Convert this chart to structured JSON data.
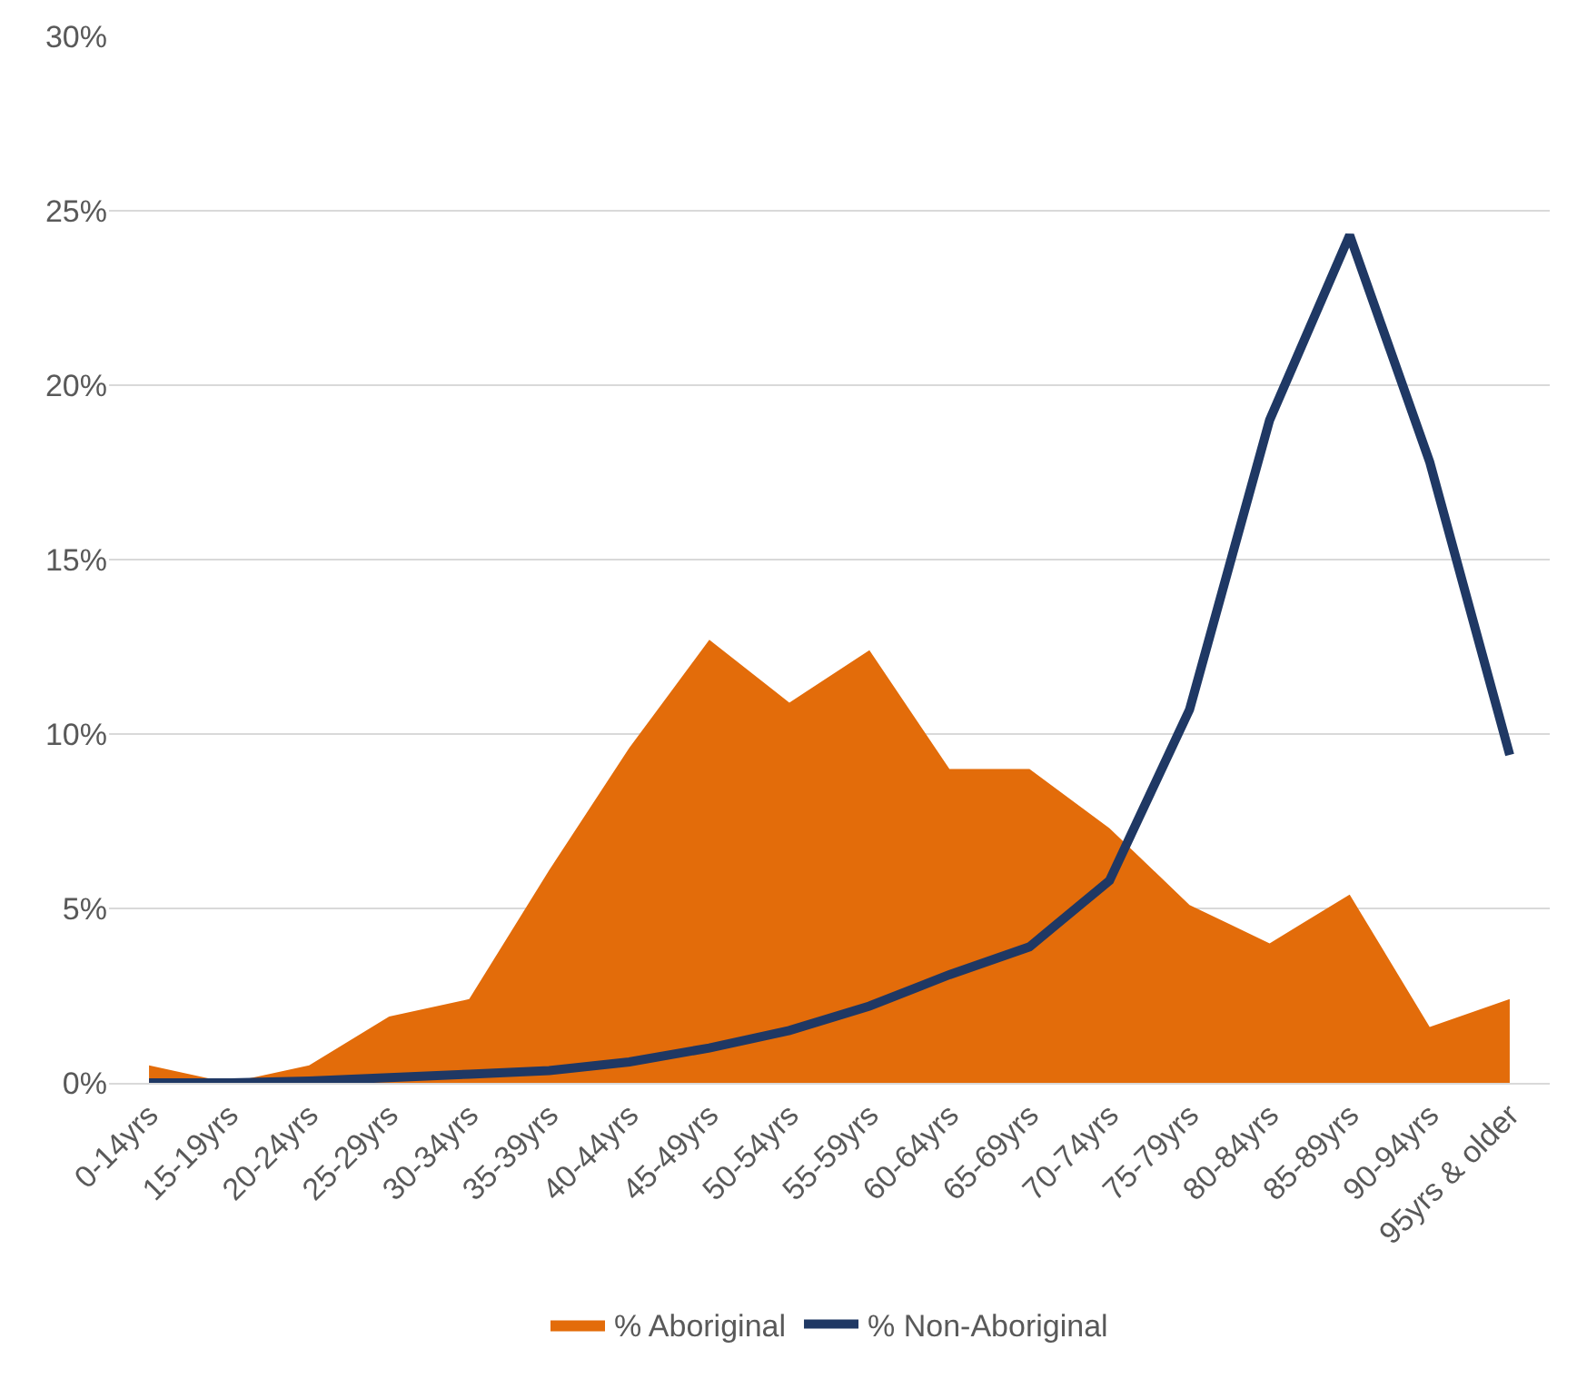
{
  "chart_data": {
    "type": "area",
    "categories": [
      "0-14yrs",
      "15-19yrs",
      "20-24yrs",
      "25-29yrs",
      "30-34yrs",
      "35-39yrs",
      "40-44yrs",
      "45-49yrs",
      "50-54yrs",
      "55-59yrs",
      "60-64yrs",
      "65-69yrs",
      "70-74yrs",
      "75-79yrs",
      "80-84yrs",
      "85-89yrs",
      "90-94yrs",
      "95yrs & older"
    ],
    "series": [
      {
        "name": "% Aboriginal",
        "color": "#e36c0a",
        "values": [
          0.5,
          0,
          0.5,
          1.9,
          2.4,
          6.1,
          9.6,
          12.7,
          10.9,
          12.4,
          9.0,
          9.0,
          7.3,
          5.1,
          4.0,
          5.4,
          1.6,
          2.4
        ]
      },
      {
        "name": "% Non-Aboriginal",
        "type": "line",
        "color": "#1f3864",
        "values": [
          0,
          0,
          0.05,
          0.15,
          0.25,
          0.35,
          0.6,
          1.0,
          1.5,
          2.2,
          3.1,
          3.9,
          5.8,
          10.7,
          19.0,
          24.3,
          17.8,
          9.4
        ]
      }
    ],
    "ylim": [
      0,
      30
    ],
    "yticks": [
      {
        "value": 0,
        "label": "0%"
      },
      {
        "value": 5,
        "label": "5%"
      },
      {
        "value": 10,
        "label": "10%"
      },
      {
        "value": 15,
        "label": "15%"
      },
      {
        "value": 20,
        "label": "20%"
      },
      {
        "value": 25,
        "label": "25%"
      },
      {
        "value": 30,
        "label": "30%"
      }
    ],
    "grid": "y",
    "legend": "bottom",
    "marker": "none",
    "line_style": "solid"
  }
}
